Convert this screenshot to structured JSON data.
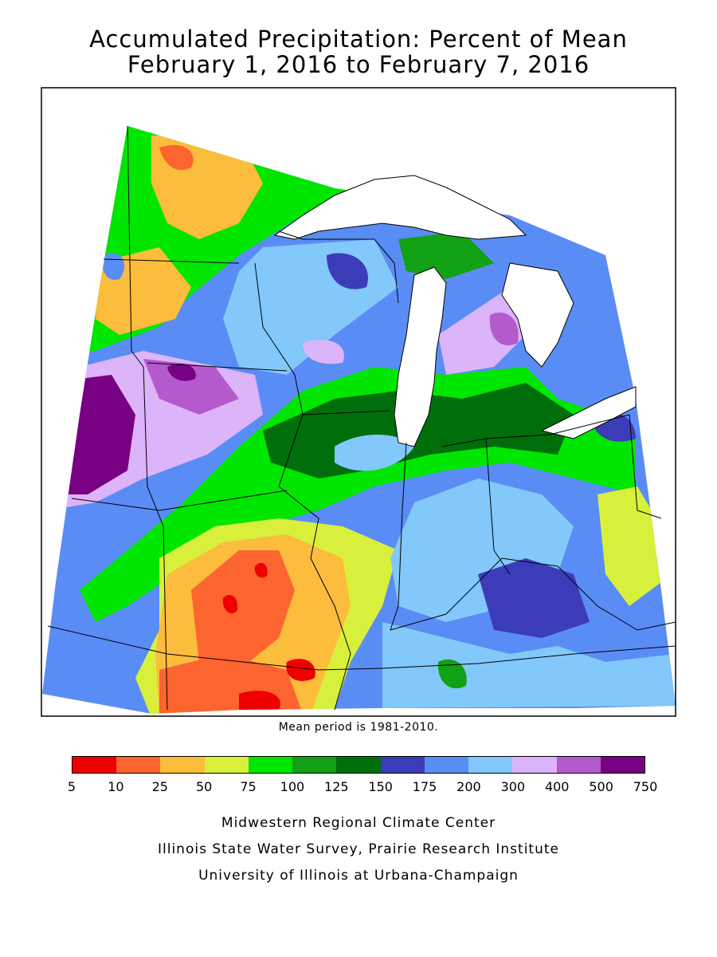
{
  "title": {
    "line1": "Accumulated Precipitation: Percent of Mean",
    "line2": "February 1, 2016 to February 7, 2016"
  },
  "map": {
    "region": "Midwest United States",
    "layers": [
      "precipitation-percent-of-mean-contours",
      "state-boundaries",
      "great-lakes"
    ]
  },
  "note": "Mean period is 1981-2010.",
  "legend": {
    "colors": [
      "#ee0000",
      "#fc6430",
      "#fcbc3c",
      "#d8f03c",
      "#00e600",
      "#12a014",
      "#006e0a",
      "#3c3cb8",
      "#5a8cf5",
      "#82c8fa",
      "#dcb4fa",
      "#b45acd",
      "#780082"
    ],
    "ticks": [
      "5",
      "10",
      "25",
      "50",
      "75",
      "100",
      "125",
      "150",
      "175",
      "200",
      "300",
      "400",
      "500",
      "750"
    ]
  },
  "credits": {
    "line1": "Midwestern Regional Climate Center",
    "line2": "Illinois State Water Survey, Prairie Research Institute",
    "line3": "University of Illinois at Urbana-Champaign"
  }
}
